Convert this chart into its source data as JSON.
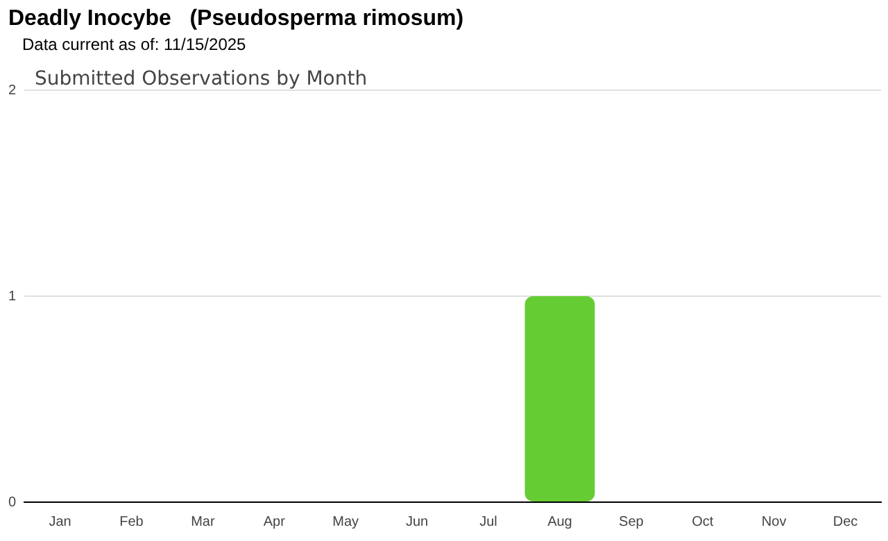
{
  "chart_data": {
    "type": "bar",
    "title": "Deadly Inocybe   (Pseudosperma rimosum)",
    "subtitle": "Data current as of: 11/15/2025",
    "annotations": [
      "Submitted Observations by Month"
    ],
    "categories": [
      "Jan",
      "Feb",
      "Mar",
      "Apr",
      "May",
      "Jun",
      "Jul",
      "Aug",
      "Sep",
      "Oct",
      "Nov",
      "Dec"
    ],
    "values": [
      0,
      0,
      0,
      0,
      0,
      0,
      0,
      1,
      0,
      0,
      0,
      0
    ],
    "color": "#66cc33",
    "ylim": [
      0,
      2
    ],
    "yticks": [
      0,
      1,
      2
    ],
    "grid": "y",
    "legend": false
  }
}
